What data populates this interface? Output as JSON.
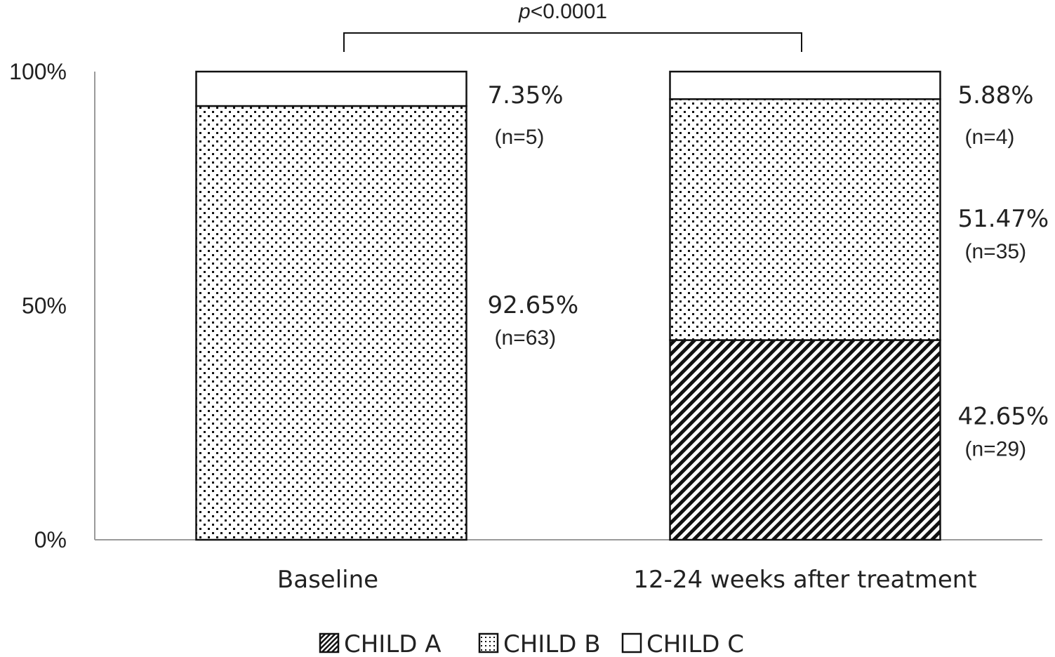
{
  "chart_data": {
    "type": "bar",
    "stacked": true,
    "categories": [
      "Baseline",
      "12-24 weeks after treatment"
    ],
    "series": [
      {
        "name": "CHILD A",
        "pattern": "diagonal-hatch",
        "values": [
          0,
          42.65
        ],
        "labels": [
          "",
          "42.65%"
        ],
        "n_labels": [
          "",
          "(n=29)"
        ]
      },
      {
        "name": "CHILD B",
        "pattern": "dots",
        "values": [
          92.65,
          51.47
        ],
        "labels": [
          "92.65%",
          "51.47%"
        ],
        "n_labels": [
          "(n=63)",
          "(n=35)"
        ]
      },
      {
        "name": "CHILD C",
        "pattern": "empty",
        "values": [
          7.35,
          5.88
        ],
        "labels": [
          "7.35%",
          "5.88%"
        ],
        "n_labels": [
          "(n=5)",
          "(n=4)"
        ]
      }
    ],
    "yticks": [
      "0%",
      "50%",
      "100%"
    ],
    "ytick_values": [
      0,
      50,
      100
    ],
    "ylim": [
      0,
      100
    ],
    "annotation": {
      "p_prefix": "p",
      "p_rest": "<0.0001"
    },
    "legend": {
      "placement": "bottom"
    },
    "colors": {
      "ink": "#111111",
      "axis": "#9a9a9a",
      "fill": "#ffffff"
    }
  }
}
